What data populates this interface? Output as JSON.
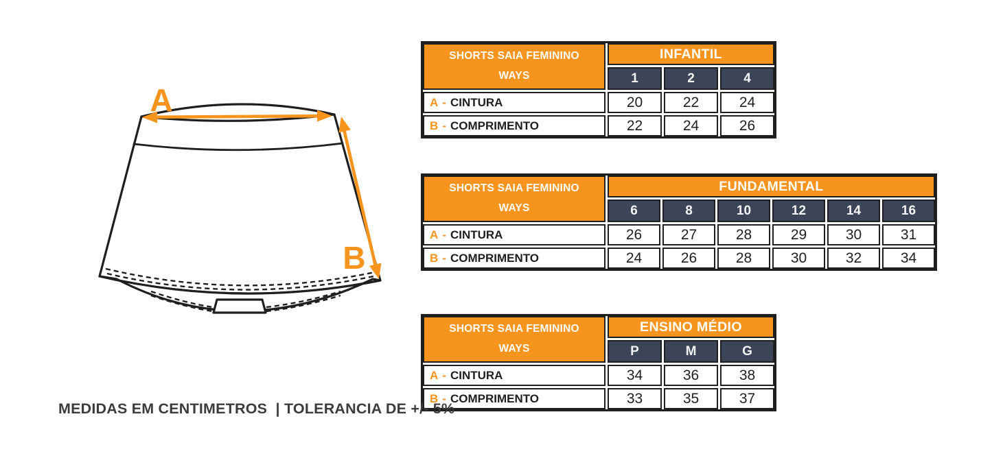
{
  "colors": {
    "orange": "#F7941E",
    "navy": "#3B4557",
    "line": "#1F1F1F",
    "text_dark": "#1F1F1F",
    "note_text": "#3C3C3C",
    "header_text": "#FFFFFF"
  },
  "diagram": {
    "label_a": "A",
    "label_b": "B"
  },
  "labels": {
    "key_separator": "-"
  },
  "footer": {
    "note": "MEDIDAS EM CENTIMETROS  | TOLERANCIA DE +/- 5%"
  },
  "tables": [
    {
      "product_lines": [
        "SHORTS SAIA FEMININO",
        "WAYS"
      ],
      "category": "INFANTIL",
      "sizes": [
        "1",
        "2",
        "4"
      ],
      "rows": [
        {
          "key": "A",
          "label": "CINTURA",
          "values": [
            "20",
            "22",
            "24"
          ]
        },
        {
          "key": "B",
          "label": "COMPRIMENTO",
          "values": [
            "22",
            "24",
            "26"
          ]
        }
      ]
    },
    {
      "product_lines": [
        "SHORTS SAIA FEMININO",
        "WAYS"
      ],
      "category": "FUNDAMENTAL",
      "sizes": [
        "6",
        "8",
        "10",
        "12",
        "14",
        "16"
      ],
      "rows": [
        {
          "key": "A",
          "label": "CINTURA",
          "values": [
            "26",
            "27",
            "28",
            "29",
            "30",
            "31"
          ]
        },
        {
          "key": "B",
          "label": "COMPRIMENTO",
          "values": [
            "24",
            "26",
            "28",
            "30",
            "32",
            "34"
          ]
        }
      ]
    },
    {
      "product_lines": [
        "SHORTS SAIA FEMININO",
        "WAYS"
      ],
      "category": "ENSINO MÉDIO",
      "sizes": [
        "P",
        "M",
        "G"
      ],
      "rows": [
        {
          "key": "A",
          "label": "CINTURA",
          "values": [
            "34",
            "36",
            "38"
          ]
        },
        {
          "key": "B",
          "label": "COMPRIMENTO",
          "values": [
            "33",
            "35",
            "37"
          ]
        }
      ]
    }
  ]
}
